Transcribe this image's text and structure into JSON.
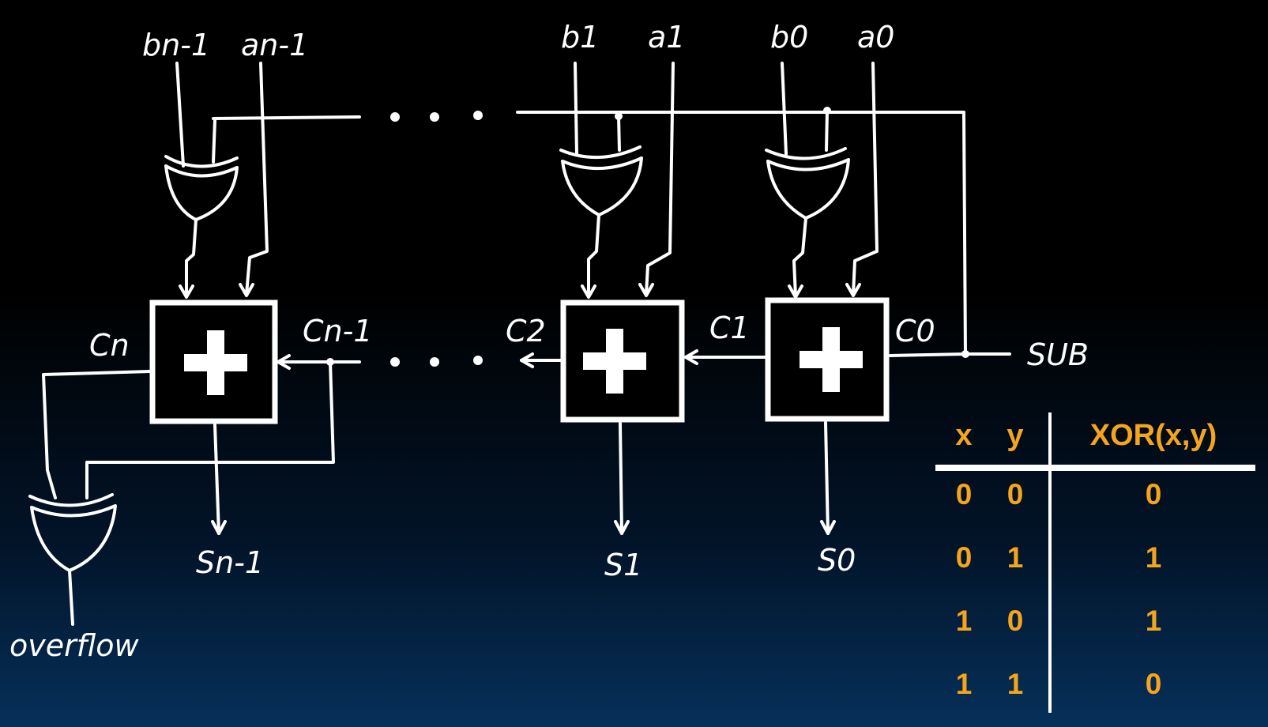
{
  "labels": {
    "b_n_minus_1": "bn-1",
    "a_n_minus_1": "an-1",
    "b1": "b1",
    "a1": "a1",
    "b0": "b0",
    "a0": "a0",
    "c_n": "Cn",
    "c_n_minus_1": "Cn-1",
    "c2": "C2",
    "c1": "C1",
    "c0": "C0",
    "sub": "SUB",
    "s_n_minus_1": "Sn-1",
    "s1": "S1",
    "s0": "S0",
    "overflow": "overflow"
  },
  "truth_table": {
    "headers": [
      "x",
      "y",
      "XOR(x,y)"
    ],
    "rows": [
      [
        "0",
        "0",
        "0"
      ],
      [
        "0",
        "1",
        "1"
      ],
      [
        "1",
        "0",
        "1"
      ],
      [
        "1",
        "1",
        "0"
      ]
    ],
    "color": "#f4a51d"
  },
  "colors": {
    "wire": "#ffffff",
    "background_top": "#000000",
    "background_bottom": "#06305a"
  }
}
